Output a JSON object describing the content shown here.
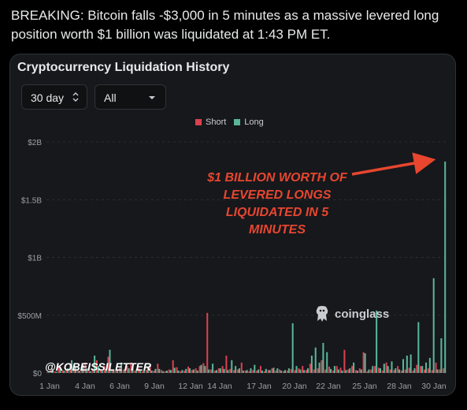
{
  "post": {
    "text": "BREAKING: Bitcoin falls -$3,000 in 5 minutes as a massive levered long position worth $1 billion was liquidated at 1:43 PM ET."
  },
  "card": {
    "title": "Cryptocurrency Liquidation History",
    "range_select": {
      "value": "30 day"
    },
    "type_select": {
      "value": "All"
    },
    "annotation": "$1 BILLION WORTH OF LEVERED LONGS LIQUIDATED IN 5 MINUTES",
    "watermark": "coinglass",
    "handle": "@KOBEISSILETTER"
  },
  "colors": {
    "short": "#d9424f",
    "long": "#5ab699",
    "annotation": "#e8462f"
  },
  "chart_data": {
    "type": "bar",
    "title": "",
    "legend": [
      "Short",
      "Long"
    ],
    "legend_position": "top",
    "y_ticks": [
      "$0",
      "$500M",
      "$1B",
      "$1.5B",
      "$2B"
    ],
    "x_ticks": [
      "1 Jan",
      "4 Jan",
      "6 Jan",
      "9 Jan",
      "12 Jan",
      "14 Jan",
      "17 Jan",
      "20 Jan",
      "22 Jan",
      "25 Jan",
      "28 Jan",
      "30 Jan"
    ],
    "ylim": [
      0,
      2000
    ],
    "unit": "millions USD",
    "series": [
      {
        "name": "Short",
        "values": [
          5,
          25,
          15,
          60,
          20,
          30,
          80,
          40,
          25,
          50,
          90,
          20,
          35,
          110,
          25,
          60,
          140,
          30,
          20,
          45,
          30,
          60,
          90,
          20,
          40,
          15,
          25,
          50,
          20,
          80,
          25,
          15,
          30,
          110,
          50,
          15,
          20,
          55,
          25,
          40,
          60,
          85,
          520,
          30,
          20,
          40,
          60,
          150,
          35,
          25,
          30,
          90,
          20,
          15,
          25,
          20,
          60,
          15,
          25,
          40,
          20,
          30,
          15,
          20,
          35,
          25,
          40,
          60,
          25,
          80,
          30,
          40,
          110,
          30,
          55,
          20,
          60,
          45,
          200,
          30,
          60,
          25,
          40,
          180,
          15,
          30,
          60,
          45,
          20,
          90,
          30,
          25,
          60,
          20,
          30,
          45,
          20,
          70,
          60,
          30,
          40,
          25,
          90,
          30,
          40
        ]
      },
      {
        "name": "Long",
        "values": [
          5,
          30,
          10,
          50,
          20,
          40,
          110,
          60,
          20,
          70,
          40,
          15,
          150,
          60,
          20,
          35,
          200,
          25,
          25,
          90,
          30,
          40,
          60,
          30,
          20,
          20,
          50,
          20,
          35,
          35,
          15,
          20,
          25,
          45,
          20,
          25,
          35,
          40,
          30,
          20,
          70,
          60,
          30,
          80,
          25,
          40,
          35,
          25,
          110,
          60,
          40,
          20,
          25,
          40,
          70,
          30,
          20,
          35,
          25,
          45,
          40,
          20,
          25,
          40,
          430,
          60,
          30,
          25,
          40,
          150,
          220,
          90,
          260,
          180,
          35,
          60,
          30,
          20,
          25,
          40,
          90,
          20,
          30,
          170,
          30,
          60,
          540,
          40,
          80,
          60,
          100,
          40,
          30,
          120,
          150,
          160,
          40,
          440,
          60,
          90,
          130,
          820,
          30,
          300,
          1830
        ]
      }
    ]
  }
}
